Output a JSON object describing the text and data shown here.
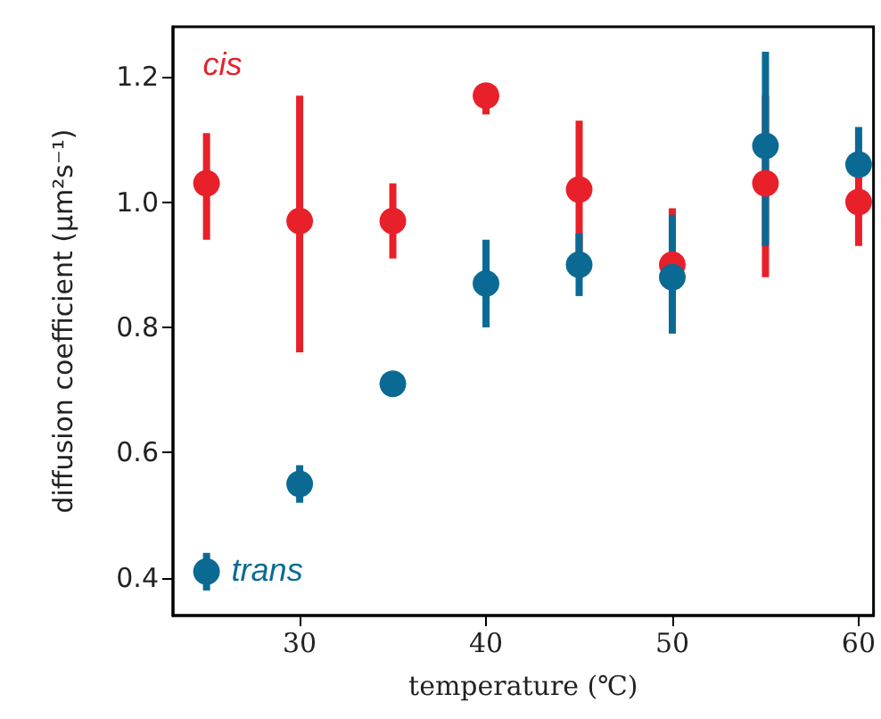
{
  "chart_data": {
    "type": "scatter",
    "xlabel": "temperature (℃)",
    "ylabel": "diffusion coefficient (μm²s⁻¹)",
    "x": [
      25,
      30,
      35,
      40,
      45,
      50,
      55,
      60
    ],
    "series": [
      {
        "name": "cis",
        "color": "#e8202a",
        "values": [
          1.03,
          0.97,
          0.97,
          1.17,
          1.02,
          0.9,
          1.03,
          1.0
        ],
        "errors": [
          [
            0.94,
            1.11
          ],
          [
            0.76,
            1.17
          ],
          [
            0.91,
            1.03
          ],
          [
            1.14,
            1.19
          ],
          [
            0.91,
            1.13
          ],
          [
            0.82,
            0.99
          ],
          [
            0.88,
            1.17
          ],
          [
            0.93,
            1.07
          ]
        ]
      },
      {
        "name": "trans",
        "color": "#0b6a94",
        "values": [
          0.41,
          0.55,
          0.71,
          0.87,
          0.9,
          0.88,
          1.09,
          1.06
        ],
        "errors": [
          [
            0.38,
            0.44
          ],
          [
            0.52,
            0.58
          ],
          null,
          [
            0.8,
            0.94
          ],
          [
            0.85,
            0.95
          ],
          [
            0.79,
            0.98
          ],
          [
            0.93,
            1.24
          ],
          [
            1.06,
            1.12
          ]
        ]
      }
    ],
    "xlim": [
      23.2,
      60.8
    ],
    "ylim": [
      0.34,
      1.28
    ],
    "xticks": [
      30,
      40,
      50,
      60
    ],
    "yticks": [
      0.4,
      0.6,
      0.8,
      {
        "value": 1,
        "label": "1.0"
      },
      1.2
    ],
    "grid": false,
    "legend": false,
    "marker": "circle"
  }
}
